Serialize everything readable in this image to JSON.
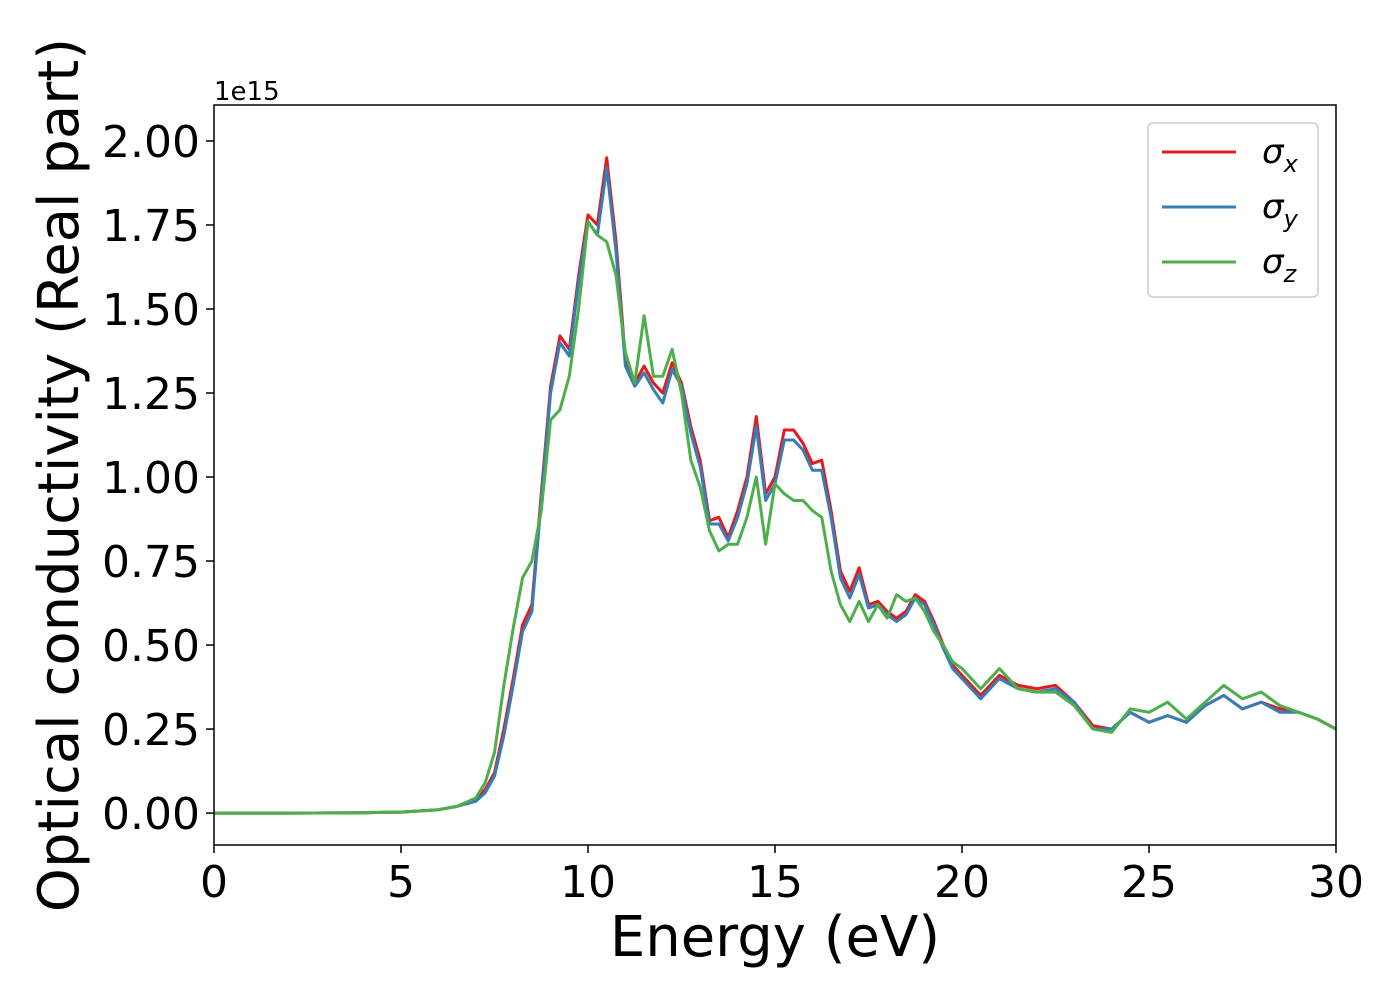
{
  "chart_data": {
    "type": "line",
    "xlabel": "Energy (eV)",
    "ylabel": "Optical conductivity (Real part)",
    "y_offset_text": "1e15",
    "x": [
      0,
      2,
      4,
      5,
      6,
      6.5,
      7,
      7.25,
      7.5,
      7.75,
      8,
      8.25,
      8.5,
      8.75,
      9,
      9.25,
      9.5,
      9.75,
      10,
      10.25,
      10.5,
      10.75,
      11,
      11.25,
      11.5,
      11.75,
      12,
      12.25,
      12.5,
      12.75,
      13,
      13.25,
      13.5,
      13.75,
      14,
      14.25,
      14.5,
      14.75,
      15,
      15.25,
      15.5,
      15.75,
      16,
      16.25,
      16.5,
      16.75,
      17,
      17.25,
      17.5,
      17.75,
      18,
      18.25,
      18.5,
      18.75,
      19,
      19.25,
      19.5,
      19.75,
      20,
      20.5,
      21,
      21.5,
      22,
      22.5,
      23,
      23.5,
      24,
      24.5,
      25,
      25.5,
      26,
      26.5,
      27,
      27.5,
      28,
      28.5,
      29,
      29.5,
      30
    ],
    "series": [
      {
        "name": "σx",
        "color": "#e41a1c",
        "values": [
          0,
          0,
          0.001,
          0.003,
          0.01,
          0.02,
          0.04,
          0.07,
          0.12,
          0.25,
          0.4,
          0.56,
          0.62,
          0.95,
          1.27,
          1.42,
          1.38,
          1.6,
          1.78,
          1.75,
          1.95,
          1.7,
          1.35,
          1.28,
          1.33,
          1.28,
          1.25,
          1.34,
          1.28,
          1.15,
          1.05,
          0.87,
          0.88,
          0.82,
          0.9,
          1.0,
          1.18,
          0.95,
          1.0,
          1.14,
          1.14,
          1.1,
          1.04,
          1.05,
          0.9,
          0.72,
          0.66,
          0.73,
          0.62,
          0.63,
          0.6,
          0.58,
          0.6,
          0.65,
          0.63,
          0.57,
          0.5,
          0.44,
          0.41,
          0.35,
          0.41,
          0.38,
          0.37,
          0.38,
          0.33,
          0.26,
          0.25,
          0.3,
          0.27,
          0.29,
          0.27,
          0.32,
          0.35,
          0.31,
          0.33,
          0.31,
          0.3,
          0.28,
          0.25
        ]
      },
      {
        "name": "σy",
        "color": "#377eb8",
        "values": [
          0,
          0,
          0.001,
          0.003,
          0.01,
          0.02,
          0.035,
          0.06,
          0.11,
          0.23,
          0.38,
          0.54,
          0.6,
          0.93,
          1.25,
          1.4,
          1.36,
          1.58,
          1.76,
          1.72,
          1.92,
          1.67,
          1.33,
          1.27,
          1.31,
          1.26,
          1.22,
          1.32,
          1.27,
          1.13,
          1.03,
          0.86,
          0.86,
          0.81,
          0.88,
          0.98,
          1.15,
          0.93,
          0.98,
          1.11,
          1.11,
          1.08,
          1.02,
          1.02,
          0.88,
          0.7,
          0.64,
          0.71,
          0.61,
          0.62,
          0.59,
          0.57,
          0.59,
          0.64,
          0.62,
          0.56,
          0.49,
          0.43,
          0.4,
          0.34,
          0.4,
          0.37,
          0.36,
          0.37,
          0.33,
          0.25,
          0.25,
          0.3,
          0.27,
          0.29,
          0.27,
          0.32,
          0.35,
          0.31,
          0.33,
          0.3,
          0.3,
          0.28,
          0.25
        ]
      },
      {
        "name": "σz",
        "color": "#4daf4a",
        "values": [
          0,
          0,
          0.001,
          0.003,
          0.01,
          0.02,
          0.045,
          0.09,
          0.18,
          0.38,
          0.55,
          0.7,
          0.75,
          0.9,
          1.17,
          1.2,
          1.3,
          1.5,
          1.76,
          1.72,
          1.7,
          1.6,
          1.37,
          1.28,
          1.48,
          1.3,
          1.3,
          1.38,
          1.25,
          1.05,
          0.97,
          0.84,
          0.78,
          0.8,
          0.8,
          0.88,
          1.0,
          0.8,
          0.98,
          0.95,
          0.93,
          0.93,
          0.9,
          0.88,
          0.72,
          0.62,
          0.57,
          0.63,
          0.57,
          0.62,
          0.58,
          0.65,
          0.63,
          0.64,
          0.6,
          0.54,
          0.5,
          0.45,
          0.43,
          0.37,
          0.43,
          0.37,
          0.36,
          0.36,
          0.32,
          0.25,
          0.24,
          0.31,
          0.3,
          0.33,
          0.28,
          0.33,
          0.38,
          0.34,
          0.36,
          0.32,
          0.3,
          0.28,
          0.25
        ]
      }
    ],
    "xlim": [
      0,
      30
    ],
    "xticks": [
      0,
      5,
      10,
      15,
      20,
      25,
      30
    ],
    "ylim": [
      -0.095,
      2.107
    ],
    "yticks": [
      {
        "value": 0,
        "label": "0.00"
      },
      {
        "value": 0.25,
        "label": "0.25"
      },
      {
        "value": 0.5,
        "label": "0.50"
      },
      {
        "value": 0.75,
        "label": "0.75"
      },
      {
        "value": 1,
        "label": "1.00"
      },
      {
        "value": 1.25,
        "label": "1.25"
      },
      {
        "value": 1.5,
        "label": "1.50"
      },
      {
        "value": 1.75,
        "label": "1.75"
      },
      {
        "value": 2,
        "label": "2.00"
      }
    ],
    "legend": "upper right",
    "grid": false
  }
}
